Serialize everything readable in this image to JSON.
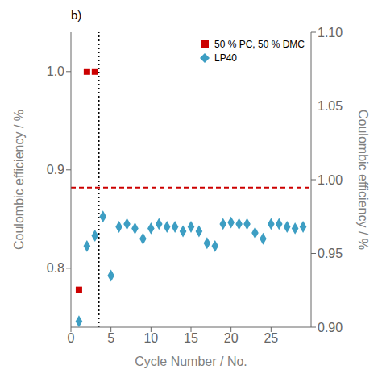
{
  "chart_data": {
    "type": "scatter",
    "title": "b)",
    "x_label": "Cycle Number / No.",
    "y_label": "Coulombic efficiency / %",
    "y2_label": "Coulombic efficiency / %",
    "xlim": [
      0,
      30
    ],
    "xticks": [
      0,
      5,
      10,
      15,
      20,
      25
    ],
    "ylim": [
      0.74,
      1.04
    ],
    "yticks": [
      0.8,
      0.9,
      {
        "value": 1,
        "label": "1.0"
      }
    ],
    "y2lim": [
      0.9,
      1.1
    ],
    "y2ticks": [
      {
        "value": 0.9,
        "label": "0.90"
      },
      0.95,
      {
        "value": 1,
        "label": "1.00"
      },
      1.05,
      {
        "value": 1.1,
        "label": "1.10"
      }
    ],
    "grid": false,
    "legend": "upper right",
    "series": [
      {
        "name": "50 % PC, 50 % DMC",
        "color": "#cc0000",
        "marker": "square",
        "x": [
          1,
          2,
          3
        ],
        "values": [
          0.778,
          1.0,
          1.0
        ]
      },
      {
        "name": "LP40",
        "color": "#3d9ec3",
        "marker": "diamond",
        "axis": "y2",
        "x": [
          1,
          2,
          3,
          4,
          5,
          6,
          7,
          8,
          9,
          10,
          11,
          12,
          13,
          14,
          15,
          16,
          17,
          18,
          19,
          20,
          21,
          22,
          23,
          24,
          25,
          26,
          27,
          28,
          29
        ],
        "values": [
          0.904,
          0.955,
          0.962,
          0.975,
          0.935,
          0.968,
          0.97,
          0.967,
          0.96,
          0.967,
          0.97,
          0.968,
          0.968,
          0.965,
          0.968,
          0.965,
          0.957,
          0.955,
          0.97,
          0.971,
          0.97,
          0.97,
          0.964,
          0.96,
          0.97,
          0.97,
          0.968,
          0.967,
          0.968
        ]
      }
    ],
    "reference_lines": [
      {
        "axis": "y",
        "value": 0.882,
        "color": "#cc0000",
        "line_style": "dashed"
      },
      {
        "axis": "x",
        "value": 3.5,
        "color": "#000000",
        "line_style": "dotted"
      }
    ]
  }
}
